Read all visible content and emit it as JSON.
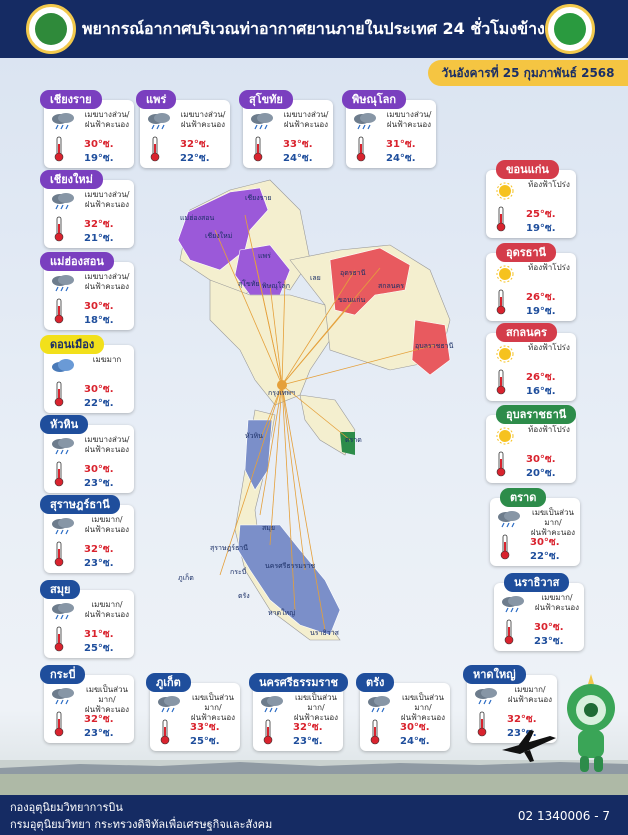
{
  "header": {
    "title": "พยากรณ์อากาศบริเวณท่าอากาศยานภายในประเทศ 24 ชั่วโมงข้างหน้า",
    "date": "วันอังคารที่ 25 กุมภาพันธ์ 2568"
  },
  "stations": [
    {
      "name": "เชียงราย",
      "desc1": "เมฆบางส่วน/",
      "desc2": "ฝนฟ้าคะนอง",
      "tmax": "30°ซ.",
      "tmin": "19°ซ.",
      "region": "purple",
      "icon": "cloud-rain-icon"
    },
    {
      "name": "แพร่",
      "desc1": "เมฆบางส่วน/",
      "desc2": "ฝนฟ้าคะนอง",
      "tmax": "32°ซ.",
      "tmin": "22°ซ.",
      "region": "purple",
      "icon": "cloud-rain-icon"
    },
    {
      "name": "สุโขทัย",
      "desc1": "เมฆบางส่วน/",
      "desc2": "ฝนฟ้าคะนอง",
      "tmax": "33°ซ.",
      "tmin": "24°ซ.",
      "region": "purple",
      "icon": "cloud-rain-icon"
    },
    {
      "name": "พิษณุโลก",
      "desc1": "เมฆบางส่วน/",
      "desc2": "ฝนฟ้าคะนอง",
      "tmax": "31°ซ.",
      "tmin": "24°ซ.",
      "region": "purple",
      "icon": "cloud-rain-icon"
    },
    {
      "name": "เชียงใหม่",
      "desc1": "เมฆบางส่วน/",
      "desc2": "ฝนฟ้าคะนอง",
      "tmax": "32°ซ.",
      "tmin": "21°ซ.",
      "region": "purple",
      "icon": "cloud-rain-icon"
    },
    {
      "name": "แม่ฮ่องสอน",
      "desc1": "เมฆบางส่วน/",
      "desc2": "ฝนฟ้าคะนอง",
      "tmax": "30°ซ.",
      "tmin": "18°ซ.",
      "region": "purple",
      "icon": "cloud-rain-icon"
    },
    {
      "name": "ดอนเมือง",
      "desc1": "เมฆมาก",
      "desc2": "",
      "tmax": "30°ซ.",
      "tmin": "22°ซ.",
      "region": "yellow",
      "icon": "cloud-icon"
    },
    {
      "name": "หัวหิน",
      "desc1": "เมฆบางส่วน/",
      "desc2": "ฝนฟ้าคะนอง",
      "tmax": "30°ซ.",
      "tmin": "23°ซ.",
      "region": "blue",
      "icon": "cloud-rain-icon"
    },
    {
      "name": "สุราษฎร์ธานี",
      "desc1": "เมฆมาก/",
      "desc2": "ฝนฟ้าคะนอง",
      "tmax": "32°ซ.",
      "tmin": "23°ซ.",
      "region": "blue",
      "icon": "cloud-rain-icon"
    },
    {
      "name": "สมุย",
      "desc1": "เมฆมาก/",
      "desc2": "ฝนฟ้าคะนอง",
      "tmax": "31°ซ.",
      "tmin": "25°ซ.",
      "region": "blue",
      "icon": "cloud-rain-icon"
    },
    {
      "name": "กระบี่",
      "desc1": "เมฆเป็นส่วนมาก/",
      "desc2": "ฝนฟ้าคะนอง",
      "tmax": "32°ซ.",
      "tmin": "23°ซ.",
      "region": "blue",
      "icon": "cloud-rain-icon"
    },
    {
      "name": "ภูเก็ต",
      "desc1": "เมฆเป็นส่วนมาก/",
      "desc2": "ฝนฟ้าคะนอง",
      "tmax": "33°ซ.",
      "tmin": "25°ซ.",
      "region": "blue",
      "icon": "cloud-rain-icon"
    },
    {
      "name": "นครศรีธรรมราช",
      "desc1": "เมฆเป็นส่วนมาก/",
      "desc2": "ฝนฟ้าคะนอง",
      "tmax": "32°ซ.",
      "tmin": "23°ซ.",
      "region": "blue",
      "icon": "cloud-rain-icon"
    },
    {
      "name": "ตรัง",
      "desc1": "เมฆเป็นส่วนมาก/",
      "desc2": "ฝนฟ้าคะนอง",
      "tmax": "30°ซ.",
      "tmin": "24°ซ.",
      "region": "blue",
      "icon": "cloud-rain-icon"
    },
    {
      "name": "หาดใหญ่",
      "desc1": "เมฆมาก/",
      "desc2": "ฝนฟ้าคะนอง",
      "tmax": "32°ซ.",
      "tmin": "23°ซ.",
      "region": "blue",
      "icon": "cloud-rain-icon"
    },
    {
      "name": "ขอนแก่น",
      "desc1": "ท้องฟ้าโปร่ง",
      "desc2": "",
      "tmax": "25°ซ.",
      "tmin": "19°ซ.",
      "region": "red",
      "icon": "sun-icon"
    },
    {
      "name": "อุดรธานี",
      "desc1": "ท้องฟ้าโปร่ง",
      "desc2": "",
      "tmax": "26°ซ.",
      "tmin": "19°ซ.",
      "region": "red",
      "icon": "sun-icon"
    },
    {
      "name": "สกลนคร",
      "desc1": "ท้องฟ้าโปร่ง",
      "desc2": "",
      "tmax": "26°ซ.",
      "tmin": "16°ซ.",
      "region": "red",
      "icon": "sun-icon"
    },
    {
      "name": "อุบลราชธานี",
      "desc1": "ท้องฟ้าโปร่ง",
      "desc2": "",
      "tmax": "30°ซ.",
      "tmin": "20°ซ.",
      "region": "green",
      "icon": "sun-icon"
    },
    {
      "name": "ตราด",
      "desc1": "เมฆเป็นส่วนมาก/",
      "desc2": "ฝนฟ้าคะนอง",
      "tmax": "30°ซ.",
      "tmin": "22°ซ.",
      "region": "green",
      "icon": "cloud-rain-icon"
    },
    {
      "name": "นราธิวาส",
      "desc1": "เมฆมาก/",
      "desc2": "ฝนฟ้าคะนอง",
      "tmax": "30°ซ.",
      "tmin": "23°ซ.",
      "region": "blue",
      "icon": "cloud-rain-icon"
    }
  ],
  "map_labels": [
    "เชียงราย",
    "แม่ฮ่องสอน",
    "เชียงใหม่",
    "แพร่",
    "สุโขทัย",
    "พิษณุโลก",
    "เลย",
    "อุดรธานี",
    "สกลนคร",
    "ขอนแก่น",
    "อุบลราชธานี",
    "กรุงเทพฯ",
    "หัวหิน",
    "ตราด",
    "สมุย",
    "สุราษฎร์ธานี",
    "นครศรีธรรมราช",
    "ภูเก็ต",
    "กระบี่",
    "ตรัง",
    "หาดใหญ่",
    "นราธิวาส"
  ],
  "footer": {
    "dept1": "กองอุตุนิยมวิทยาการบิน",
    "dept2": "กรมอุตุนิยมวิทยา กระทรวงดิจิทัลเพื่อเศรษฐกิจและสังคม",
    "phone": "02 1340006 - 7"
  },
  "colors": {
    "navy": "#152b63",
    "purple": "#7a3fbf",
    "red": "#e85a5f",
    "blue": "#7b8fc9",
    "yellow": "#f2e01b",
    "green": "#2d8c4a"
  }
}
